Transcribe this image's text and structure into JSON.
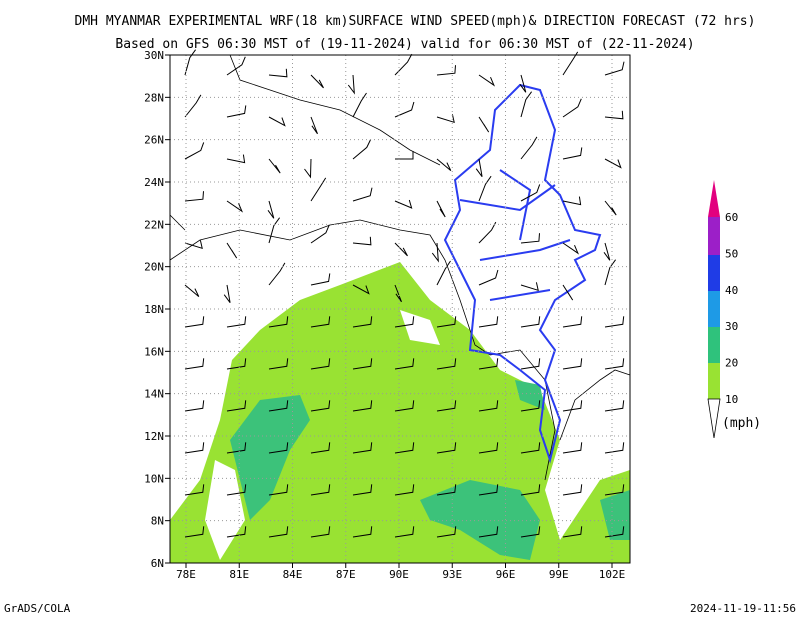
{
  "header": {
    "title": "DMH MYANMAR EXPERIMENTAL WRF(18 km)SURFACE WIND SPEED(mph)& DIRECTION FORECAST (72 hrs)",
    "subtitle": "Based on GFS 06:30 MST of (19-11-2024) valid for 06:30 MST of (22-11-2024)"
  },
  "map": {
    "lat_labels": [
      "30N",
      "28N",
      "26N",
      "24N",
      "22N",
      "20N",
      "18N",
      "16N",
      "14N",
      "12N",
      "10N",
      "8N",
      "6N"
    ],
    "lon_labels": [
      "78E",
      "81E",
      "84E",
      "87E",
      "90E",
      "93E",
      "96E",
      "99E",
      "102E"
    ]
  },
  "legend": {
    "labels": [
      "60",
      "50",
      "40",
      "30",
      "20",
      "10"
    ],
    "unit": "(mph)"
  },
  "footer": {
    "left": "GrADS/COLA",
    "right": "2024-11-19-11:56"
  }
}
